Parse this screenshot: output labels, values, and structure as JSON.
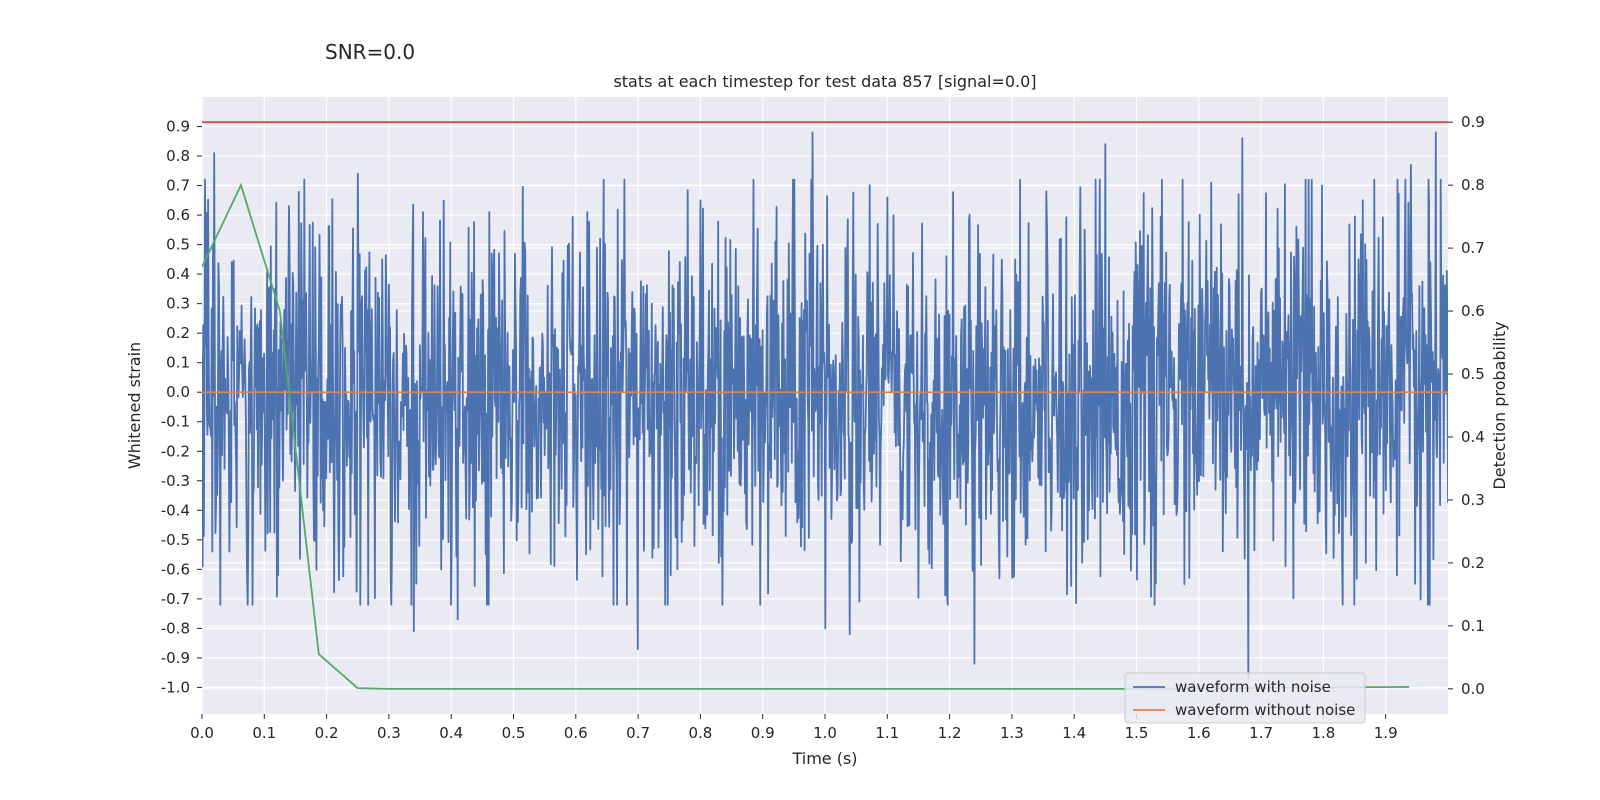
{
  "suptitle": "SNR=0.0",
  "chart_data": {
    "type": "line",
    "title": "stats at each timestep for test data 857 [signal=0.0]",
    "xlabel": "Time (s)",
    "ylabel": "Whitened strain",
    "y2label": "Detection probability",
    "xlim": [
      0.0,
      2.0
    ],
    "ylim": [
      -1.09,
      1.0
    ],
    "y2lim": [
      -0.04,
      0.94
    ],
    "x_ticks": [
      "0.0",
      "0.1",
      "0.2",
      "0.3",
      "0.4",
      "0.5",
      "0.6",
      "0.7",
      "0.8",
      "0.9",
      "1.0",
      "1.1",
      "1.2",
      "1.3",
      "1.4",
      "1.5",
      "1.6",
      "1.7",
      "1.8",
      "1.9"
    ],
    "y_ticks": [
      "0.9",
      "0.8",
      "0.7",
      "0.6",
      "0.5",
      "0.4",
      "0.3",
      "0.2",
      "0.1",
      "0.0",
      "-0.1",
      "-0.2",
      "-0.3",
      "-0.4",
      "-0.5",
      "-0.6",
      "-0.7",
      "-0.8",
      "-0.9",
      "-1.0"
    ],
    "y2_ticks": [
      "0.9",
      "0.8",
      "0.7",
      "0.6",
      "0.5",
      "0.4",
      "0.3",
      "0.2",
      "0.1",
      "0.0"
    ],
    "grid": true,
    "legend_position": "lower-right",
    "series": [
      {
        "name": "waveform with noise",
        "color": "#4c72b0",
        "axis": "left",
        "noise_amplitude": 0.3,
        "n_samples": 2048,
        "peaks": [
          [
            0.02,
            0.81
          ],
          [
            0.14,
            0.63
          ],
          [
            0.25,
            0.74
          ],
          [
            0.34,
            -0.81
          ],
          [
            0.41,
            -0.77
          ],
          [
            0.7,
            -0.87
          ],
          [
            0.98,
            0.88
          ],
          [
            1.0,
            -0.8
          ],
          [
            1.04,
            -0.82
          ],
          [
            1.1,
            0.66
          ],
          [
            1.24,
            -0.92
          ],
          [
            1.45,
            0.84
          ],
          [
            1.62,
            0.71
          ],
          [
            1.67,
            0.86
          ],
          [
            1.68,
            -0.97
          ],
          [
            1.94,
            0.77
          ],
          [
            1.98,
            0.88
          ]
        ]
      },
      {
        "name": "waveform without noise",
        "color": "#dd8452",
        "axis": "left",
        "x": [
          0.0,
          2.0
        ],
        "y": [
          0.0,
          0.0
        ]
      },
      {
        "name": "detection probability",
        "color": "#55a868",
        "axis": "right",
        "x": [
          0.0,
          0.0625,
          0.125,
          0.1875,
          0.25,
          0.3,
          0.5,
          1.0,
          1.5,
          1.9375
        ],
        "y": [
          0.67,
          0.8,
          0.6,
          0.055,
          0.001,
          0.0,
          0.0,
          0.0,
          0.0,
          0.003
        ]
      },
      {
        "name": "threshold",
        "color": "#c44e52",
        "axis": "right",
        "x": [
          0.0,
          2.0
        ],
        "y": [
          0.9,
          0.9
        ]
      }
    ],
    "legend": [
      "waveform with noise",
      "waveform without noise"
    ]
  }
}
